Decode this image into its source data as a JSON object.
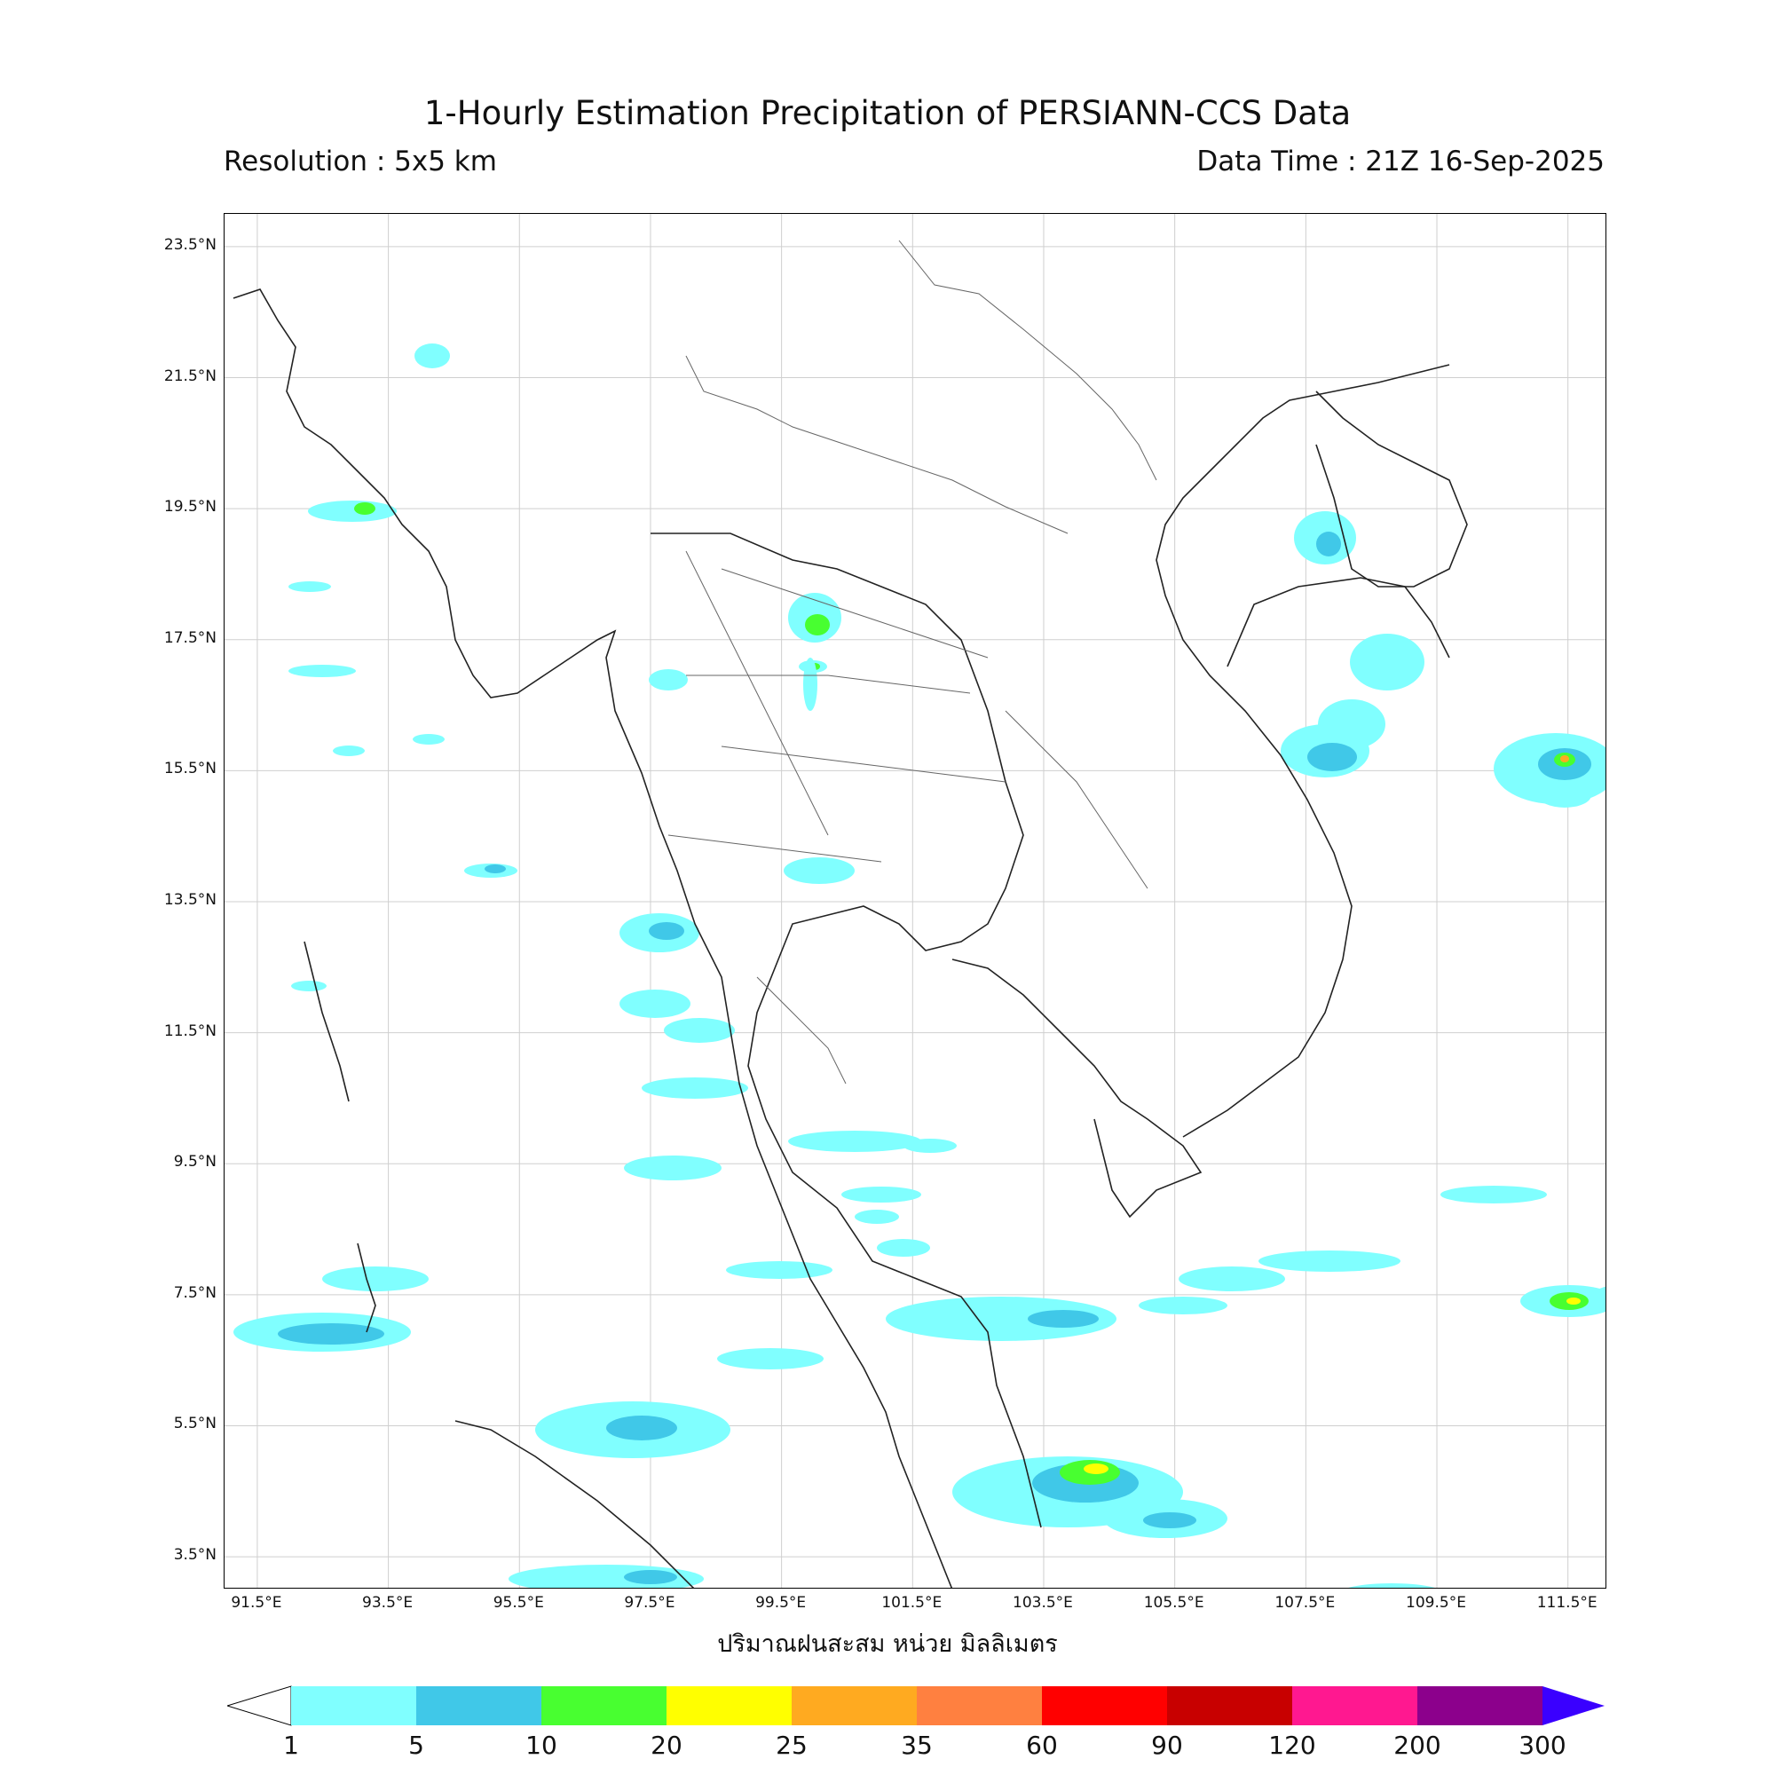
{
  "header": {
    "title": "1-Hourly Estimation Precipitation of PERSIANN-CCS Data",
    "resolution": "Resolution : 5x5 km",
    "data_time": "Data Time : 21Z 16-Sep-2025"
  },
  "axes": {
    "lat_labels": [
      "23.5°N",
      "21.5°N",
      "19.5°N",
      "17.5°N",
      "15.5°N",
      "13.5°N",
      "11.5°N",
      "9.5°N",
      "7.5°N",
      "5.5°N",
      "3.5°N"
    ],
    "lon_labels": [
      "91.5°E",
      "93.5°E",
      "95.5°E",
      "97.5°E",
      "99.5°E",
      "101.5°E",
      "103.5°E",
      "105.5°E",
      "107.5°E",
      "109.5°E",
      "111.5°E"
    ],
    "lat_range": [
      3.0,
      24.0
    ],
    "lon_range": [
      91.0,
      112.1
    ]
  },
  "unit_label": "ปริมาณฝนสะสม หน่วย มิลลิเมตร",
  "legend": {
    "ticks": [
      "1",
      "5",
      "10",
      "20",
      "25",
      "35",
      "60",
      "90",
      "120",
      "200",
      "300"
    ],
    "colors": [
      "#80ffff",
      "#40c8e8",
      "#48ff30",
      "#ffff00",
      "#ffaa20",
      "#ff8040",
      "#ff0000",
      "#c80000",
      "#ff1890",
      "#8c008c"
    ],
    "under_color": "#ffffff",
    "over_color": "#3a00ff"
  }
}
